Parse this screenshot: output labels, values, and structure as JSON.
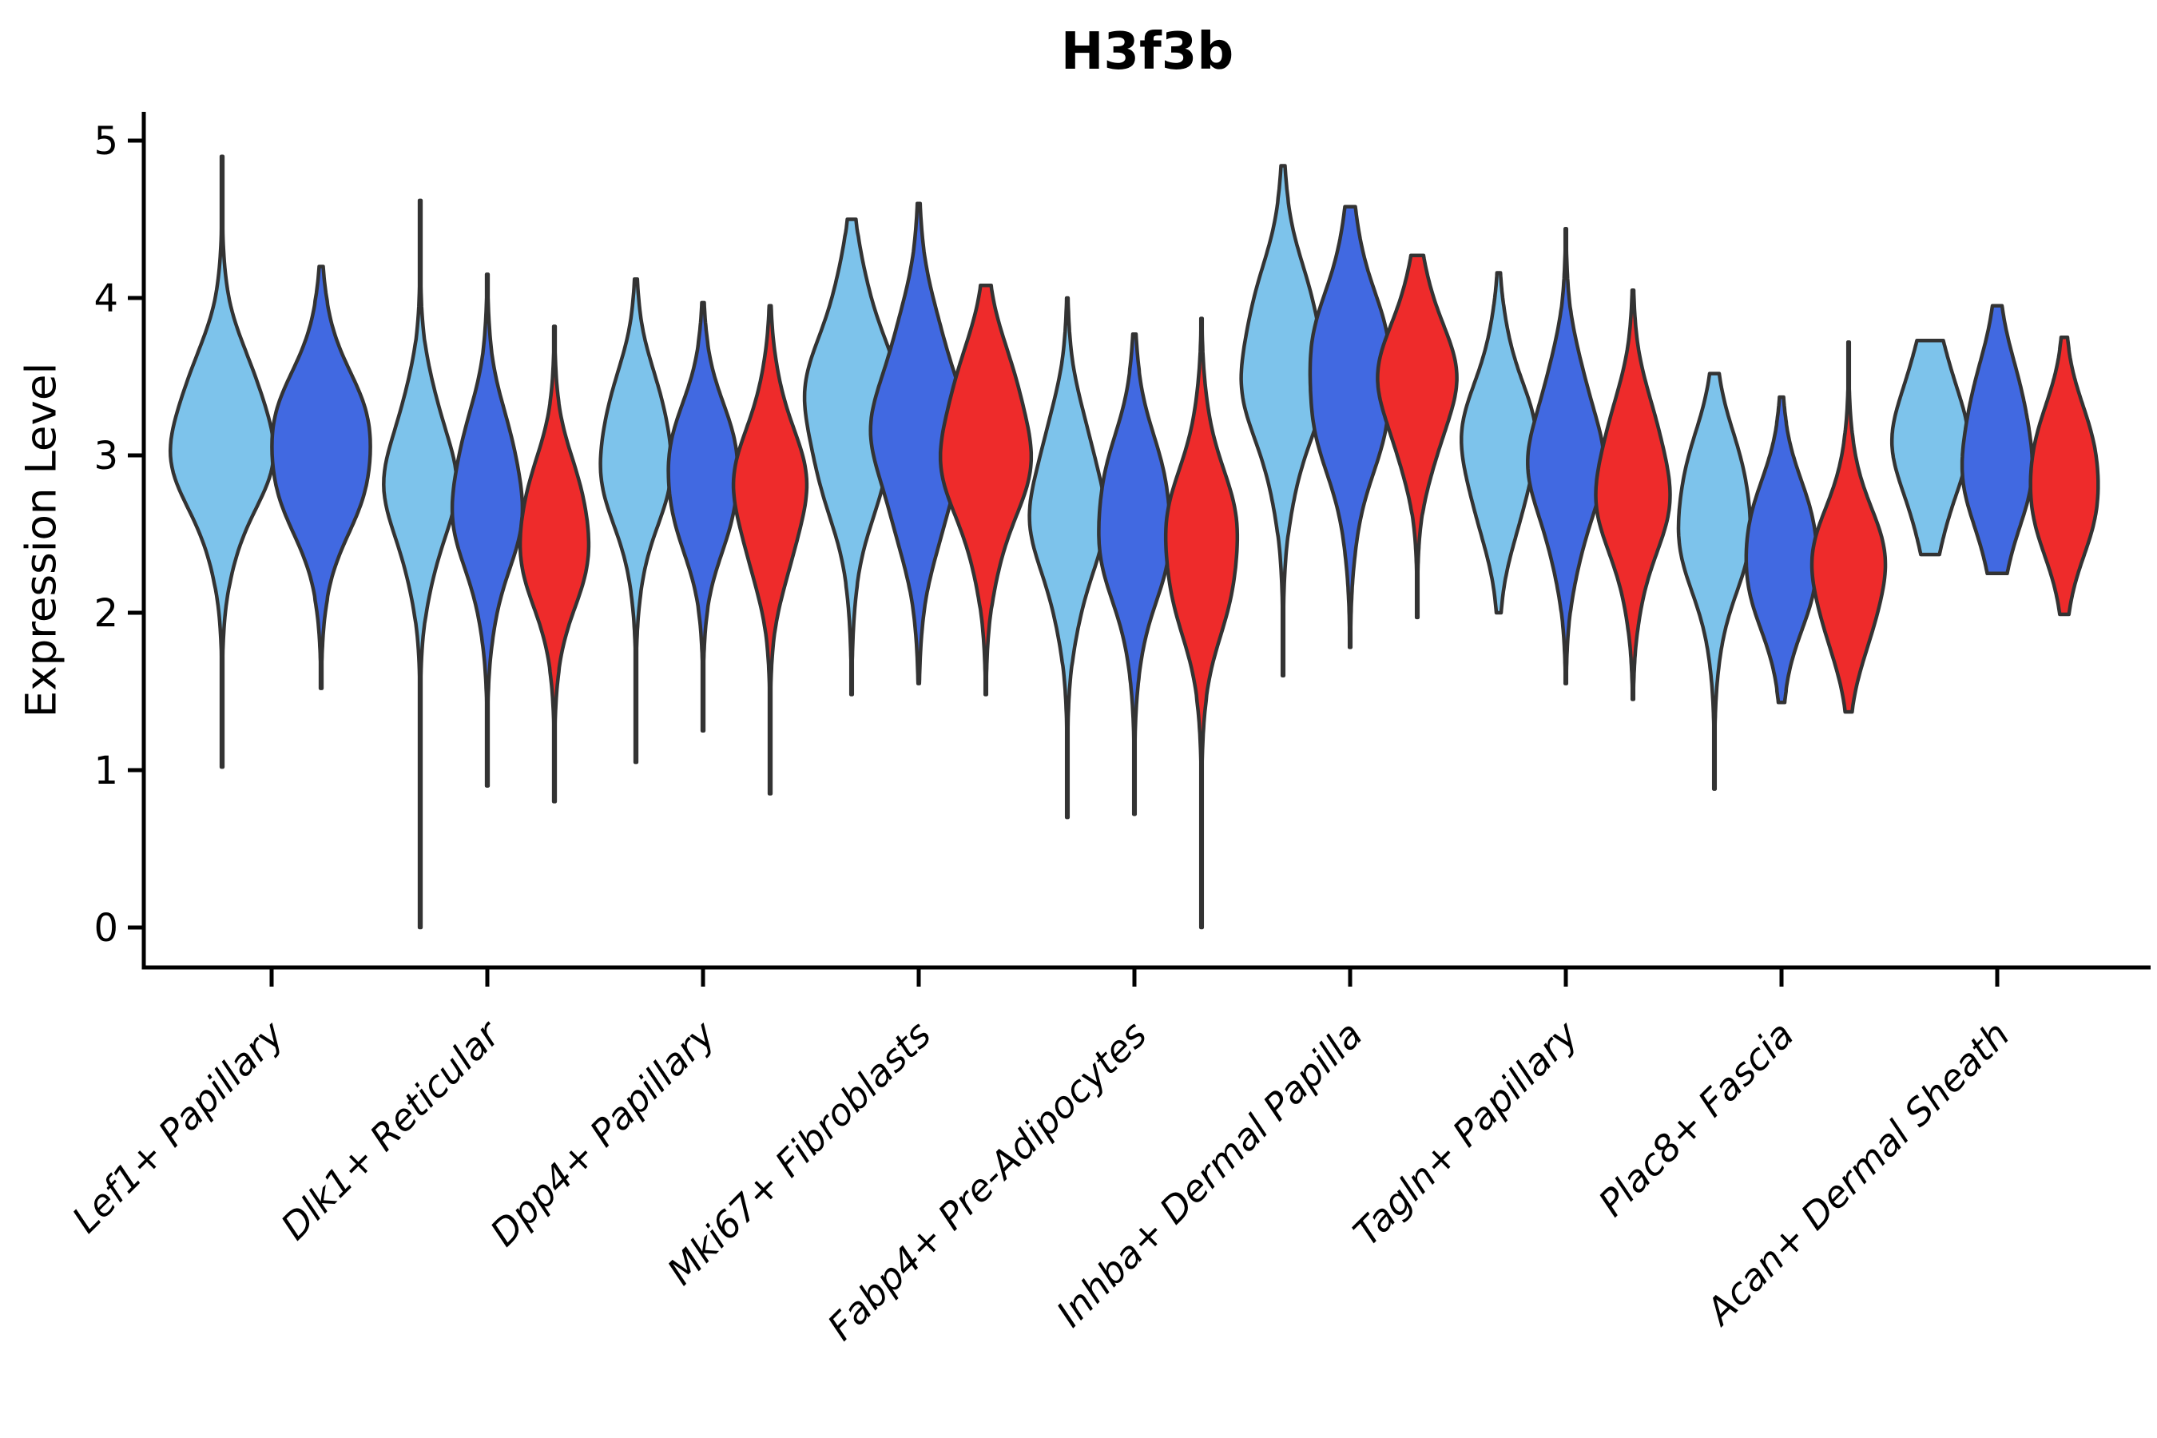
{
  "chart_data": {
    "type": "violin",
    "title": "H3f3b",
    "ylabel": "Expression Level",
    "yticks": [
      0,
      1,
      2,
      3,
      4,
      5
    ],
    "ylim": [
      -0.25,
      5.18
    ],
    "grid": false,
    "legend_position": "none",
    "palette": {
      "series1": "#7DC3EB",
      "series2": "#4169E1",
      "series3": "#EE2B2B"
    },
    "outline_color": "#333333",
    "categories": [
      "Lef1+ Papillary",
      "Dlk1+ Reticular",
      "Dpp4+ Papillary",
      "Mki67+ Fibroblasts",
      "Fabp4+ Pre-Adipocytes",
      "Inhba+ Dermal Papilla",
      "Tagln+ Papillary",
      "Plac8+ Fascia",
      "Acan+ Dermal Sheath"
    ],
    "groups": [
      {
        "category": "Lef1+ Papillary",
        "violins": [
          {
            "color": "#7DC3EB",
            "peak": 3.08,
            "spread": 0.46,
            "min": 1.02,
            "max": 4.9,
            "halfwidth": 64
          },
          {
            "color": "#4169E1",
            "peak": 3.03,
            "spread": 0.46,
            "min": 1.52,
            "max": 4.2,
            "halfwidth": 64
          }
        ]
      },
      {
        "category": "Dlk1+ Reticular",
        "violins": [
          {
            "color": "#7DC3EB",
            "peak": 2.83,
            "spread": 0.44,
            "min": 0.0,
            "max": 4.62,
            "halfwidth": 44
          },
          {
            "color": "#4169E1",
            "peak": 2.72,
            "spread": 0.46,
            "min": 0.9,
            "max": 4.15,
            "halfwidth": 44
          },
          {
            "color": "#EE2B2B",
            "peak": 2.48,
            "spread": 0.42,
            "min": 0.8,
            "max": 3.82,
            "halfwidth": 44
          }
        ]
      },
      {
        "category": "Dpp4+ Papillary",
        "violins": [
          {
            "color": "#7DC3EB",
            "peak": 3.0,
            "spread": 0.44,
            "min": 1.05,
            "max": 4.12,
            "halfwidth": 45
          },
          {
            "color": "#4169E1",
            "peak": 2.87,
            "spread": 0.42,
            "min": 1.25,
            "max": 3.97,
            "halfwidth": 45
          },
          {
            "color": "#EE2B2B",
            "peak": 2.77,
            "spread": 0.44,
            "min": 0.85,
            "max": 3.95,
            "halfwidth": 45
          }
        ]
      },
      {
        "category": "Mki67+ Fibroblasts",
        "violins": [
          {
            "color": "#7DC3EB",
            "peak": 3.3,
            "spread": 0.55,
            "min": 1.48,
            "max": 4.5,
            "halfwidth": 58
          },
          {
            "color": "#4169E1",
            "peak": 3.15,
            "spread": 0.55,
            "min": 1.55,
            "max": 4.6,
            "halfwidth": 58
          },
          {
            "color": "#EE2B2B",
            "peak": 3.05,
            "spread": 0.5,
            "min": 1.48,
            "max": 4.08,
            "halfwidth": 56
          }
        ]
      },
      {
        "category": "Fabp4+ Pre-Adipocytes",
        "violins": [
          {
            "color": "#7DC3EB",
            "peak": 2.65,
            "spread": 0.48,
            "min": 0.7,
            "max": 4.0,
            "halfwidth": 46
          },
          {
            "color": "#4169E1",
            "peak": 2.57,
            "spread": 0.48,
            "min": 0.72,
            "max": 3.77,
            "halfwidth": 46
          },
          {
            "color": "#EE2B2B",
            "peak": 2.42,
            "spread": 0.48,
            "min": 0.0,
            "max": 3.87,
            "halfwidth": 46
          }
        ]
      },
      {
        "category": "Inhba+ Dermal Papilla",
        "violins": [
          {
            "color": "#7DC3EB",
            "peak": 3.56,
            "spread": 0.52,
            "min": 1.6,
            "max": 4.84,
            "halfwidth": 52
          },
          {
            "color": "#4169E1",
            "peak": 3.48,
            "spread": 0.54,
            "min": 1.78,
            "max": 4.58,
            "halfwidth": 52
          },
          {
            "color": "#EE2B2B",
            "peak": 3.47,
            "spread": 0.42,
            "min": 1.97,
            "max": 4.27,
            "halfwidth": 48
          }
        ]
      },
      {
        "category": "Tagln+ Papillary",
        "violins": [
          {
            "color": "#7DC3EB",
            "peak": 3.05,
            "spread": 0.45,
            "min": 2.0,
            "max": 4.16,
            "halfwidth": 46
          },
          {
            "color": "#4169E1",
            "peak": 2.97,
            "spread": 0.47,
            "min": 1.55,
            "max": 4.44,
            "halfwidth": 46
          },
          {
            "color": "#EE2B2B",
            "peak": 2.8,
            "spread": 0.45,
            "min": 1.45,
            "max": 4.05,
            "halfwidth": 46
          }
        ]
      },
      {
        "category": "Plac8+ Fascia",
        "violins": [
          {
            "color": "#7DC3EB",
            "peak": 2.6,
            "spread": 0.46,
            "min": 0.88,
            "max": 3.52,
            "halfwidth": 46
          },
          {
            "color": "#4169E1",
            "peak": 2.36,
            "spread": 0.42,
            "min": 1.43,
            "max": 3.37,
            "halfwidth": 46
          },
          {
            "color": "#EE2B2B",
            "peak": 2.26,
            "spread": 0.41,
            "min": 1.37,
            "max": 3.72,
            "halfwidth": 46
          }
        ]
      },
      {
        "category": "Acan+ Dermal Sheath",
        "violins": [
          {
            "color": "#7DC3EB",
            "peak": 3.1,
            "spread": 0.44,
            "min": 2.37,
            "max": 3.73,
            "halfwidth": 46
          },
          {
            "color": "#4169E1",
            "peak": 3.0,
            "spread": 0.48,
            "min": 2.25,
            "max": 3.95,
            "halfwidth": 44
          },
          {
            "color": "#EE2B2B",
            "peak": 2.83,
            "spread": 0.42,
            "min": 1.99,
            "max": 3.75,
            "halfwidth": 44
          }
        ]
      }
    ]
  }
}
